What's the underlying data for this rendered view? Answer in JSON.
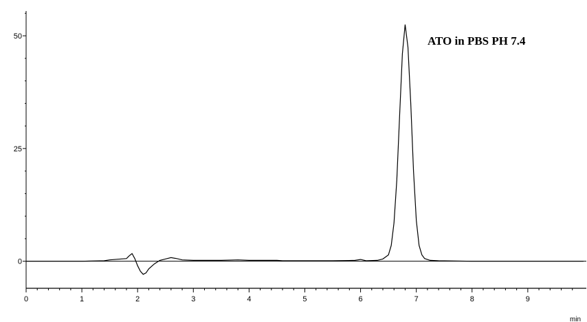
{
  "chart_data": {
    "type": "line",
    "title": "",
    "xlabel": "",
    "ylabel": "",
    "x_unit": "min",
    "annotation": "ATO  in  PBS PH 7.4",
    "xlim": [
      0,
      10.05
    ],
    "ylim": [
      -6,
      55.5
    ],
    "x_ticks": [
      0,
      1,
      2,
      3,
      4,
      5,
      6,
      7,
      8,
      9
    ],
    "y_ticks": [
      0,
      25,
      50
    ],
    "grid": false,
    "legend": "none",
    "line_color": "#000000",
    "series": [
      {
        "x": [
          0,
          0.5,
          1.0,
          1.4,
          1.5,
          1.8,
          1.85,
          1.9,
          1.95,
          2.0,
          2.05,
          2.1,
          2.15,
          2.2,
          2.3,
          2.4,
          2.5,
          2.6,
          2.7,
          2.8,
          3.0,
          3.5,
          3.8,
          4.0,
          4.5,
          4.6,
          5.0,
          5.5,
          5.9,
          6.0,
          6.1,
          6.3,
          6.4,
          6.5,
          6.55,
          6.6,
          6.65,
          6.7,
          6.75,
          6.8,
          6.85,
          6.9,
          6.95,
          7.0,
          7.05,
          7.1,
          7.15,
          7.25,
          7.4,
          8.0,
          9.0,
          10.0
        ],
        "y": [
          0,
          0,
          0,
          0.1,
          0.3,
          0.6,
          1.2,
          1.7,
          0.6,
          -1.0,
          -2.2,
          -2.9,
          -2.6,
          -1.7,
          -0.6,
          0.2,
          0.5,
          0.8,
          0.6,
          0.3,
          0.2,
          0.2,
          0.3,
          0.2,
          0.2,
          0.1,
          0.1,
          0.1,
          0.2,
          0.4,
          0.1,
          0.2,
          0.5,
          1.4,
          3.5,
          8.5,
          18.0,
          32.0,
          46.0,
          52.5,
          47.5,
          35.0,
          20.0,
          9.0,
          3.5,
          1.4,
          0.6,
          0.2,
          0.1,
          0,
          0,
          0
        ]
      }
    ]
  }
}
